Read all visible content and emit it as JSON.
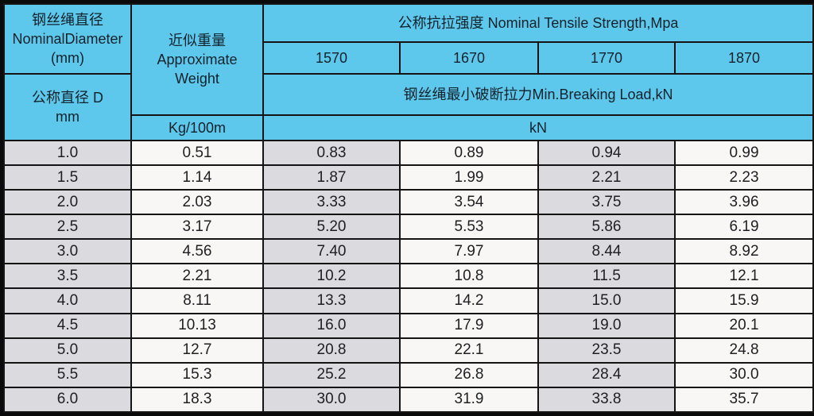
{
  "table": {
    "header": {
      "nominal_diameter": {
        "line1": "钢丝绳直径",
        "line2": "NominalDiameter",
        "line3": "(mm)"
      },
      "nominal_diameter_sub": {
        "line1": "公称直径 D",
        "line2": "mm"
      },
      "approximate_weight": {
        "line1": "近似重量",
        "line2": "Approximate",
        "line3": "Weight"
      },
      "weight_unit": "Kg/100m",
      "tensile_strength_title": "公称抗拉强度 Nominal Tensile Strength,Mpa",
      "strength_grades": [
        "1570",
        "1670",
        "1770",
        "1870"
      ],
      "breaking_load_title": "钢丝绳最小破断拉力Min.Breaking Load,kN",
      "load_unit": "kN"
    },
    "rows": [
      {
        "diameter": "1.0",
        "weight": "0.51",
        "loads": [
          "0.83",
          "0.89",
          "0.94",
          "0.99"
        ]
      },
      {
        "diameter": "1.5",
        "weight": "1.14",
        "loads": [
          "1.87",
          "1.99",
          "2.21",
          "2.23"
        ]
      },
      {
        "diameter": "2.0",
        "weight": "2.03",
        "loads": [
          "3.33",
          "3.54",
          "3.75",
          "3.96"
        ]
      },
      {
        "diameter": "2.5",
        "weight": "3.17",
        "loads": [
          "5.20",
          "5.53",
          "5.86",
          "6.19"
        ]
      },
      {
        "diameter": "3.0",
        "weight": "4.56",
        "loads": [
          "7.40",
          "7.97",
          "8.44",
          "8.92"
        ]
      },
      {
        "diameter": "3.5",
        "weight": "2.21",
        "loads": [
          "10.2",
          "10.8",
          "11.5",
          "12.1"
        ]
      },
      {
        "diameter": "4.0",
        "weight": "8.11",
        "loads": [
          "13.3",
          "14.2",
          "15.0",
          "15.9"
        ]
      },
      {
        "diameter": "4.5",
        "weight": "10.13",
        "loads": [
          "16.0",
          "17.9",
          "19.0",
          "20.1"
        ]
      },
      {
        "diameter": "5.0",
        "weight": "12.7",
        "loads": [
          "20.8",
          "22.1",
          "23.5",
          "24.8"
        ]
      },
      {
        "diameter": "5.5",
        "weight": "15.3",
        "loads": [
          "25.2",
          "26.8",
          "28.4",
          "30.0"
        ]
      },
      {
        "diameter": "6.0",
        "weight": "18.3",
        "loads": [
          "30.0",
          "31.9",
          "33.8",
          "35.7"
        ]
      }
    ],
    "colors": {
      "header_bg": "#5ec8ec",
      "shade_col_bg": "#dbdbdf",
      "plain_col_bg": "#f8f7f5",
      "border": "#141414"
    }
  }
}
